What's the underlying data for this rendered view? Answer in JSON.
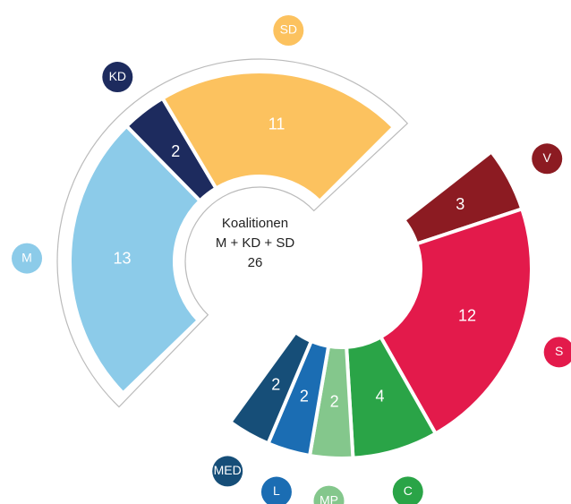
{
  "chart_data": {
    "type": "donut",
    "center_title": "Koalitionen",
    "center_subtitle": "M + KD + SD",
    "center_total": 26,
    "series": [
      {
        "name": "M",
        "value": 13,
        "color": "#8ccbe9"
      },
      {
        "name": "KD",
        "value": 2,
        "color": "#1d2b5e"
      },
      {
        "name": "SD",
        "value": 11,
        "color": "#fcc25f"
      },
      {
        "name": "V",
        "value": 3,
        "color": "#8c1b22"
      },
      {
        "name": "S",
        "value": 12,
        "color": "#e31a4b"
      },
      {
        "name": "C",
        "value": 4,
        "color": "#2aa447"
      },
      {
        "name": "MP",
        "value": 2,
        "color": "#84c78c"
      },
      {
        "name": "L",
        "value": 2,
        "color": "#1b6db3"
      },
      {
        "name": "MED",
        "value": 2,
        "color": "#164e78"
      }
    ]
  }
}
